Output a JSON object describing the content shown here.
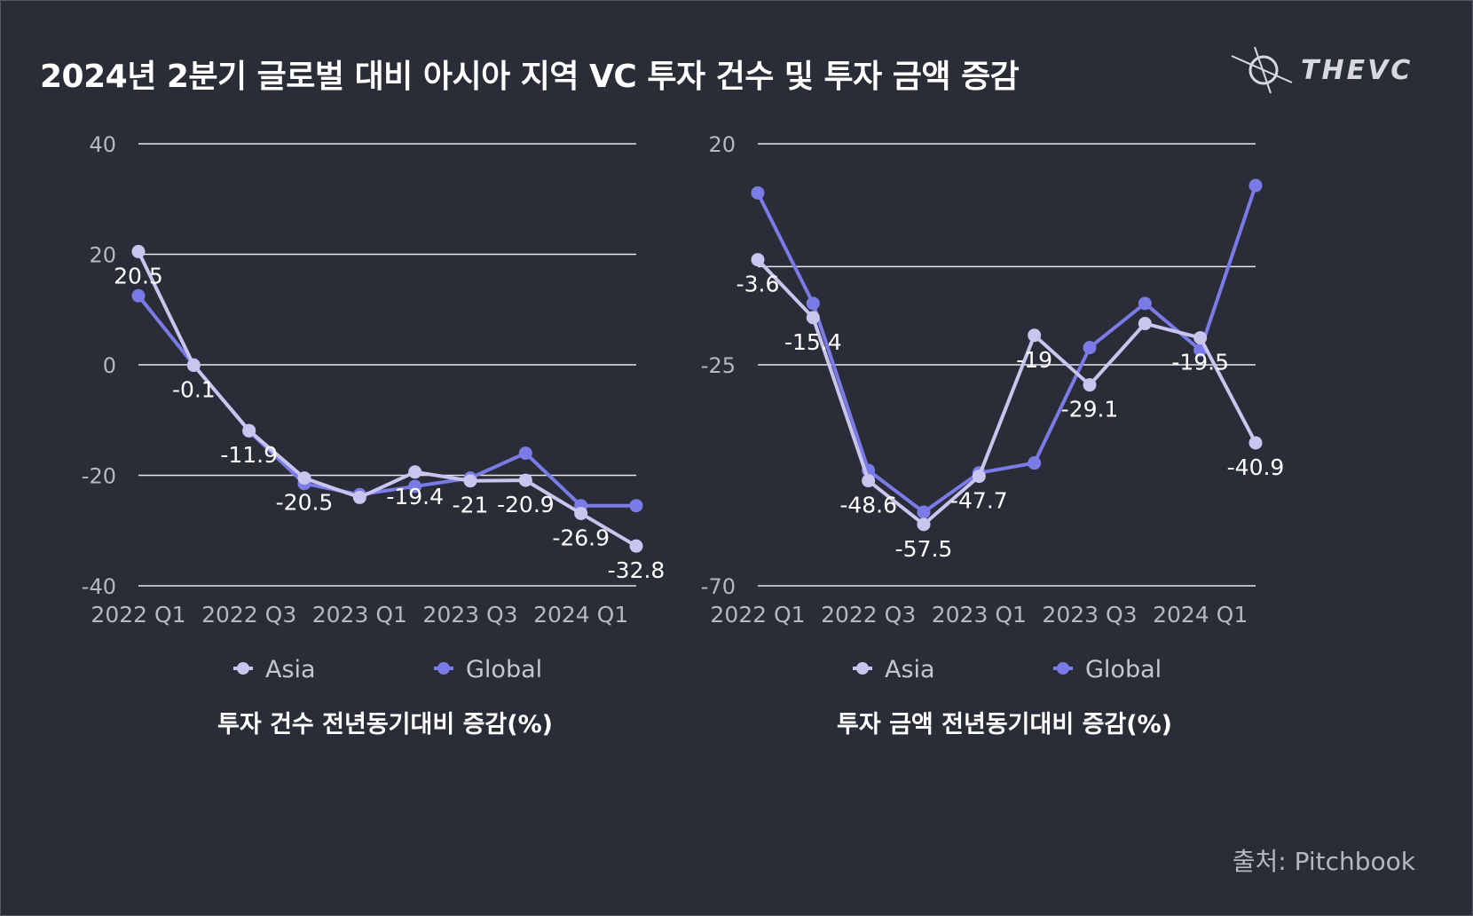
{
  "title": "2024년 2분기 글로벌 대비 아시아 지역 VC 투자 건수 및 투자 금액 증감",
  "logo_text": "THEVC",
  "source": "출처: Pitchbook",
  "colors": {
    "background": "#2a2d38",
    "asia": "#c8c6ee",
    "global": "#7b7be8",
    "grid": "#e6e6ea",
    "text": "#ffffff"
  },
  "chart_data": [
    {
      "type": "line",
      "title": "투자 건수 전년동기대비 증감(%)",
      "categories": [
        "2022 Q1",
        "2022 Q2",
        "2022 Q3",
        "2022 Q4",
        "2023 Q1",
        "2023 Q2",
        "2023 Q3",
        "2023 Q4",
        "2024 Q1",
        "2024 Q2"
      ],
      "x_tick_labels": [
        "2022 Q1",
        "2022 Q3",
        "2023 Q1",
        "2023 Q3",
        "2024 Q1"
      ],
      "y_ticks": [
        40,
        20,
        0,
        -20,
        -40
      ],
      "ylim": [
        -40,
        40
      ],
      "series": [
        {
          "name": "Asia",
          "values": [
            20.5,
            -0.1,
            -11.9,
            -20.5,
            -24,
            -19.4,
            -21,
            -20.9,
            -26.9,
            -32.8
          ]
        },
        {
          "name": "Global",
          "values": [
            12.5,
            0,
            -12,
            -21.5,
            -23.5,
            -22,
            -20.5,
            -16,
            -25.5,
            -25.5
          ]
        }
      ],
      "data_labels": [
        "20.5",
        "-0.1",
        "-11.9",
        "-20.5",
        "",
        "-19.4",
        "-21",
        "-20.9",
        "-26.9",
        "-32.8"
      ],
      "legend": [
        "Asia",
        "Global"
      ]
    },
    {
      "type": "line",
      "title": "투자 금액 전년동기대비 증감(%)",
      "categories": [
        "2022 Q1",
        "2022 Q2",
        "2022 Q3",
        "2022 Q4",
        "2023 Q1",
        "2023 Q2",
        "2023 Q3",
        "2023 Q4",
        "2024 Q1",
        "2024 Q2"
      ],
      "x_tick_labels": [
        "2022 Q1",
        "2022 Q3",
        "2023 Q1",
        "2023 Q3",
        "2024 Q1"
      ],
      "y_ticks": [
        20,
        -25,
        -70
      ],
      "ylim": [
        -70,
        20
      ],
      "series": [
        {
          "name": "Asia",
          "values": [
            -3.6,
            -15.4,
            -48.6,
            -57.5,
            -47.7,
            -19,
            -29.1,
            -16.6,
            -19.5,
            -40.9
          ]
        },
        {
          "name": "Global",
          "values": [
            10,
            -12.5,
            -46.5,
            -55,
            -47,
            -45,
            -21.5,
            -12.5,
            -22,
            11.5
          ]
        }
      ],
      "data_labels": [
        "-3.6",
        "-15.4",
        "-48.6",
        "-57.5",
        "-47.7",
        "-19",
        "-29.1",
        "",
        "-19.5",
        "-40.9"
      ],
      "legend": [
        "Asia",
        "Global"
      ]
    }
  ]
}
